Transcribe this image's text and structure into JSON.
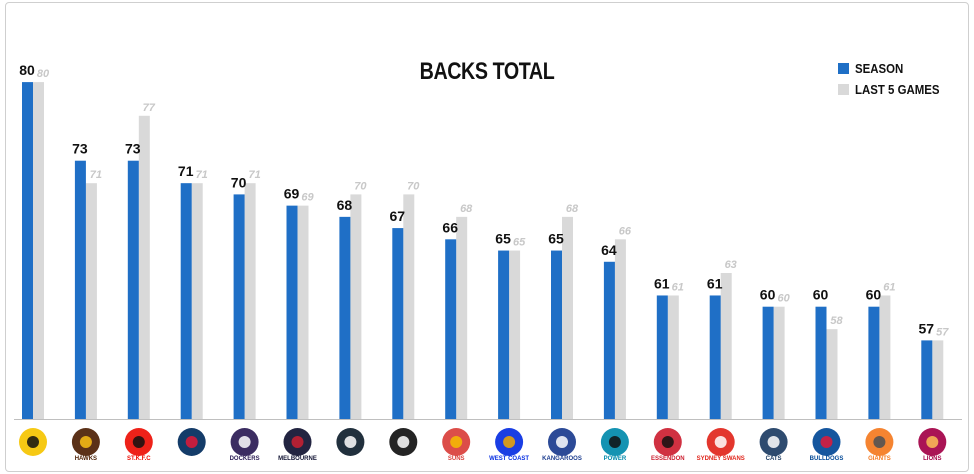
{
  "chart_data": {
    "type": "bar",
    "title": "BACKS TOTAL",
    "xlabel": "",
    "ylabel": "",
    "categories": [
      "Richmond",
      "Hawthorn",
      "St Kilda",
      "Adelaide",
      "Fremantle",
      "Melbourne",
      "Carlton",
      "Collingwood",
      "Gold Coast",
      "West Coast",
      "North Melbourne",
      "Port Adelaide",
      "Essendon",
      "Sydney",
      "Geelong",
      "Western Bulldogs",
      "GWS Giants",
      "Brisbane"
    ],
    "series": [
      {
        "name": "SEASON",
        "color": "#1f6fc6",
        "values": [
          80,
          73,
          73,
          71,
          70,
          69,
          68,
          67,
          66,
          65,
          65,
          64,
          61,
          61,
          60,
          60,
          60,
          57
        ]
      },
      {
        "name": "LAST 5 GAMES",
        "color": "#d9d9d9",
        "values": [
          80,
          71,
          77,
          71,
          71,
          69,
          70,
          70,
          68,
          65,
          68,
          66,
          61,
          63,
          60,
          58,
          61,
          57
        ]
      }
    ],
    "ylim": [
      50,
      81
    ],
    "grid": false,
    "legend_position": "top-right",
    "data_labels": true
  },
  "logos": [
    {
      "icon": "richmond-logo-icon",
      "text": "",
      "colors": [
        "#f5c400",
        "#111111"
      ]
    },
    {
      "icon": "hawthorn-logo-icon",
      "text": "HAWKS",
      "colors": [
        "#4d2004",
        "#fbbf15"
      ]
    },
    {
      "icon": "stkilda-logo-icon",
      "text": "ST.K.F.C",
      "colors": [
        "#ed0f05",
        "#111111"
      ]
    },
    {
      "icon": "adelaide-logo-icon",
      "text": "",
      "colors": [
        "#002b5c",
        "#e21937"
      ]
    },
    {
      "icon": "fremantle-logo-icon",
      "text": "DOCKERS",
      "colors": [
        "#2a1a54",
        "#ffffff"
      ]
    },
    {
      "icon": "melbourne-logo-icon",
      "text": "MELBOURNE",
      "colors": [
        "#0f1131",
        "#cc2031"
      ]
    },
    {
      "icon": "carlton-logo-icon",
      "text": "",
      "colors": [
        "#0e1e2d",
        "#ffffff"
      ]
    },
    {
      "icon": "collingwood-logo-icon",
      "text": "",
      "colors": [
        "#111111",
        "#ffffff"
      ]
    },
    {
      "icon": "goldcoast-logo-icon",
      "text": "SUNS",
      "colors": [
        "#d93e39",
        "#f6bd00"
      ]
    },
    {
      "icon": "westcoast-logo-icon",
      "text": "WEST COAST",
      "colors": [
        "#062ee2",
        "#f2a900"
      ]
    },
    {
      "icon": "northmelbourne-logo-icon",
      "text": "KANGAROOS",
      "colors": [
        "#1a3b8e",
        "#ffffff"
      ]
    },
    {
      "icon": "portadelaide-logo-icon",
      "text": "POWER",
      "colors": [
        "#008aab",
        "#111111"
      ]
    },
    {
      "icon": "essendon-logo-icon",
      "text": "ESSENDON",
      "colors": [
        "#cc2031",
        "#111111"
      ]
    },
    {
      "icon": "sydney-logo-icon",
      "text": "SYDNEY SWANS",
      "colors": [
        "#e1251b",
        "#ffffff"
      ]
    },
    {
      "icon": "geelong-logo-icon",
      "text": "CATS",
      "colors": [
        "#1c3c63",
        "#ffffff"
      ]
    },
    {
      "icon": "bulldogs-logo-icon",
      "text": "BULLDOGS",
      "colors": [
        "#014896",
        "#e21937"
      ]
    },
    {
      "icon": "gws-logo-icon",
      "text": "GIANTS",
      "colors": [
        "#f47920",
        "#4a4f55"
      ]
    },
    {
      "icon": "brisbane-logo-icon",
      "text": "LIONS",
      "colors": [
        "#a30046",
        "#fdbe57"
      ]
    }
  ]
}
